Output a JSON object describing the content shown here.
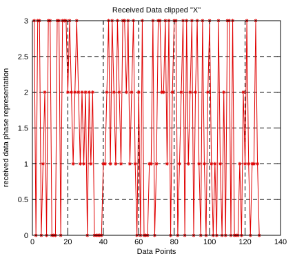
{
  "chart_data": {
    "type": "line",
    "title": "Received Data clipped \"X\"",
    "xlabel": "Data Points",
    "ylabel": "received data phase representation",
    "xlim": [
      0,
      140
    ],
    "ylim": [
      0,
      3
    ],
    "x_ticks": [
      "0",
      "20",
      "40",
      "60",
      "80",
      "100",
      "120",
      "140"
    ],
    "y_ticks": [
      "0",
      "0.5",
      "1",
      "1.5",
      "2",
      "2.5",
      "3"
    ],
    "grid": true,
    "style": "red line with asterisk markers",
    "color": "#e00000",
    "series": [
      {
        "name": "",
        "x": [
          1,
          2,
          3,
          4,
          5,
          6,
          7,
          8,
          9,
          10,
          11,
          12,
          13,
          14,
          15,
          16,
          17,
          18,
          19,
          20,
          21,
          22,
          23,
          24,
          25,
          26,
          27,
          28,
          29,
          30,
          31,
          32,
          33,
          34,
          35,
          36,
          37,
          38,
          39,
          40,
          41,
          42,
          43,
          44,
          45,
          46,
          47,
          48,
          49,
          50,
          51,
          52,
          53,
          54,
          55,
          56,
          57,
          58,
          59,
          60,
          61,
          62,
          63,
          64,
          65,
          66,
          67,
          68,
          69,
          70,
          71,
          72,
          73,
          74,
          75,
          76,
          77,
          78,
          79,
          80,
          81,
          82,
          83,
          84,
          85,
          86,
          87,
          88,
          89,
          90,
          91,
          92,
          93,
          94,
          95,
          96,
          97,
          98,
          99,
          100,
          101,
          102,
          103,
          104,
          105,
          106,
          107,
          108,
          109,
          110,
          111,
          112,
          113,
          114,
          115,
          116,
          117,
          118,
          119,
          120,
          121,
          122,
          123,
          124,
          125,
          126,
          127,
          128
        ],
        "y": [
          3,
          0,
          3,
          3,
          0,
          1,
          2,
          0,
          3,
          3,
          0,
          0,
          0,
          3,
          3,
          0,
          3,
          3,
          3,
          2,
          3,
          2,
          1,
          2,
          3,
          2,
          1,
          2,
          1,
          2,
          0,
          2,
          1,
          2,
          0,
          0,
          0,
          0,
          0,
          1,
          1,
          2,
          3,
          1,
          3,
          2,
          1,
          3,
          2,
          1,
          3,
          3,
          2,
          3,
          1,
          2,
          3,
          1,
          0,
          2,
          0,
          3,
          0,
          0,
          0,
          1,
          1,
          3,
          0,
          1,
          3,
          3,
          2,
          2,
          3,
          1,
          3,
          0,
          2,
          3,
          3,
          0,
          1,
          2,
          3,
          0,
          3,
          1,
          2,
          3,
          0,
          2,
          3,
          1,
          0,
          3,
          1,
          0,
          2,
          3,
          1,
          0,
          1,
          0,
          3,
          1,
          0,
          2,
          0,
          3,
          3,
          0,
          3,
          0,
          0,
          0,
          1,
          0,
          2,
          1,
          3,
          1,
          0,
          1,
          1,
          3,
          1,
          0
        ]
      }
    ]
  }
}
